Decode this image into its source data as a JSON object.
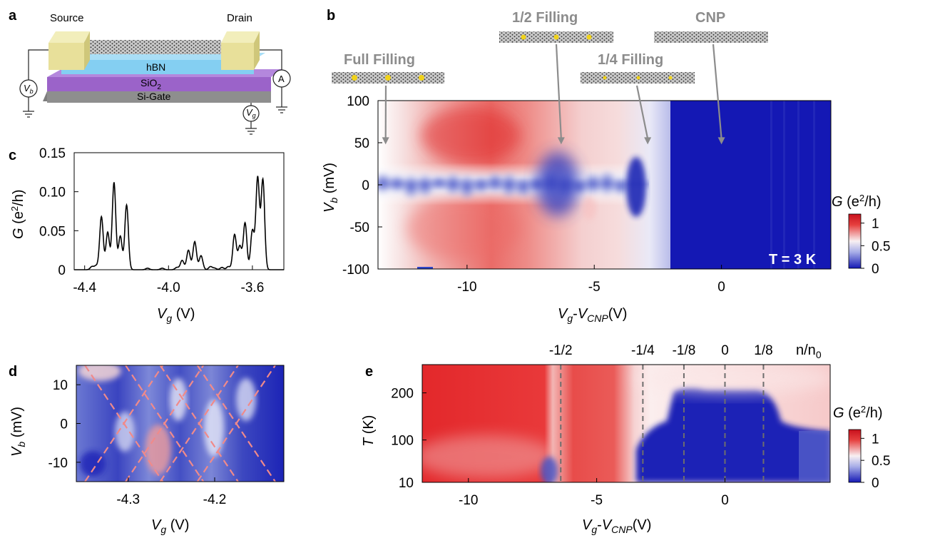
{
  "panels": {
    "a": "a",
    "b": "b",
    "c": "c",
    "d": "d",
    "e": "e"
  },
  "device": {
    "source": "Source",
    "drain": "Drain",
    "hbn": "hBN",
    "sio2_main": "SiO",
    "sio2_sub": "2",
    "gate": "Si-Gate",
    "ammeter": "A",
    "vb_main": "V",
    "vb_sub": "b",
    "vg_main": "V",
    "vg_sub": "g"
  },
  "fillings": {
    "full": "Full Filling",
    "half": "1/2 Filling",
    "quarter": "1/4 Filling",
    "cnp": "CNP"
  },
  "labels": {
    "G_main": "G",
    "G_open": " (e",
    "G_sup": "2",
    "G_close": "/h)",
    "V": "V",
    "b": "b",
    "g": "g",
    "mV": " (mV)",
    "volt": " (V)",
    "volt_tight": "(V)",
    "dash": "-",
    "cnp_sub": "CNP",
    "T": "T",
    "K": " (K)",
    "n_main": "n/n",
    "n_sub": "0",
    "temp_note": "T = 3 K"
  },
  "colors": {
    "map_red": "#e21e26",
    "map_white": "#f5f5f8",
    "map_blue": "#1418b4",
    "gray_arrow": "#8c8c8c",
    "dashed_pink": "#f08a8a"
  },
  "chart_data": [
    {
      "panel": "b",
      "type": "heatmap",
      "x_ticks": [
        "-10",
        "-5",
        "0"
      ],
      "y_ticks": [
        "100",
        "50",
        "0",
        "-50",
        "-100"
      ],
      "xlim": [
        -13.5,
        4.3
      ],
      "ylim": [
        -100,
        100
      ],
      "colorbar": {
        "ticks": [
          "1",
          "0.5",
          "0"
        ],
        "range": [
          0,
          1.2
        ]
      },
      "annotation": "T = 3 K",
      "arrow_x": [
        -13.2,
        -6.3,
        -2.9,
        0
      ]
    },
    {
      "panel": "c",
      "type": "line",
      "x_ticks": [
        "-4.4",
        "-4.0",
        "-3.6"
      ],
      "y_ticks": [
        "0.15",
        "0.10",
        "0.05",
        "0"
      ],
      "xlim": [
        -4.45,
        -3.45
      ],
      "ylim": [
        0,
        0.15
      ],
      "peaks_x": [
        -4.365,
        -4.345,
        -4.32,
        -4.29,
        -4.26,
        -4.23,
        -4.2,
        -4.1,
        -4.03,
        -3.96,
        -3.935,
        -3.905,
        -3.875,
        -3.845,
        -3.8,
        -3.78,
        -3.745,
        -3.715,
        -3.685,
        -3.66,
        -3.635,
        -3.6,
        -3.575,
        -3.55
      ],
      "peaks_y": [
        0.004,
        0.005,
        0.068,
        0.048,
        0.112,
        0.043,
        0.083,
        0.002,
        0.002,
        0.003,
        0.012,
        0.025,
        0.036,
        0.018,
        0.004,
        0.002,
        0.003,
        0.004,
        0.045,
        0.03,
        0.06,
        0.05,
        0.118,
        0.115
      ]
    },
    {
      "panel": "d",
      "type": "heatmap",
      "x_ticks": [
        "-4.3",
        "-4.2"
      ],
      "y_ticks": [
        "10",
        "0",
        "-10"
      ],
      "xlim": [
        -4.36,
        -4.12
      ],
      "ylim": [
        -15,
        15
      ]
    },
    {
      "panel": "e",
      "type": "heatmap",
      "x_ticks": [
        "-10",
        "-5",
        "0"
      ],
      "y_ticks": [
        "200",
        "100",
        "10"
      ],
      "xlim": [
        -11.8,
        4.1
      ],
      "ylim": [
        10,
        260
      ],
      "top_ticks": [
        "-1/2",
        "-1/4",
        "-1/8",
        "0",
        "1/8"
      ],
      "top_ticks_x": [
        -6.4,
        -3.2,
        -1.6,
        0,
        1.5
      ],
      "colorbar": {
        "ticks": [
          "1",
          "0.5",
          "0"
        ],
        "range": [
          0,
          1.2
        ]
      }
    }
  ]
}
